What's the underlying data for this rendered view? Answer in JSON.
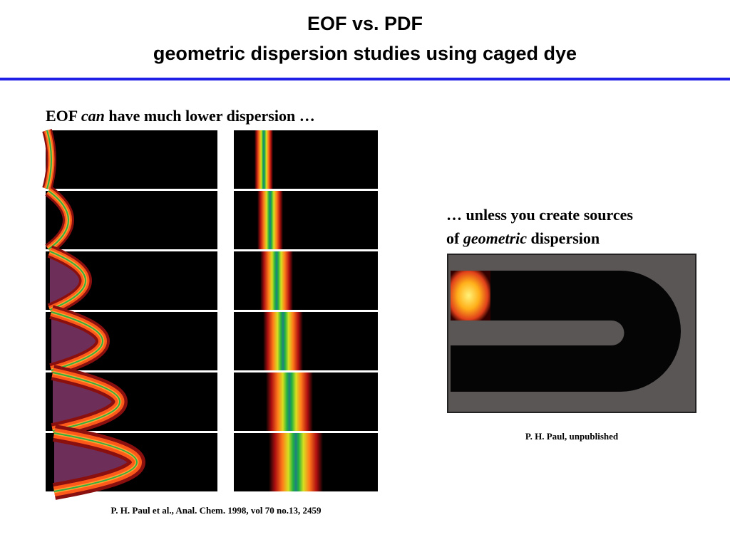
{
  "title": {
    "line1": "EOF vs. PDF",
    "line2": "geometric dispersion studies using caged dye"
  },
  "left": {
    "heading": {
      "before": "EOF",
      "italic": "can",
      "after": "have much lower dispersion …"
    },
    "citation": "P. H. Paul et al., Anal. Chem. 1998, vol 70 no.13, 2459"
  },
  "right": {
    "heading": {
      "line1": "… unless you create sources",
      "before": "of",
      "italic": "geometric",
      "after": "dispersion"
    },
    "citation": "P. H. Paul, unpublished"
  }
}
